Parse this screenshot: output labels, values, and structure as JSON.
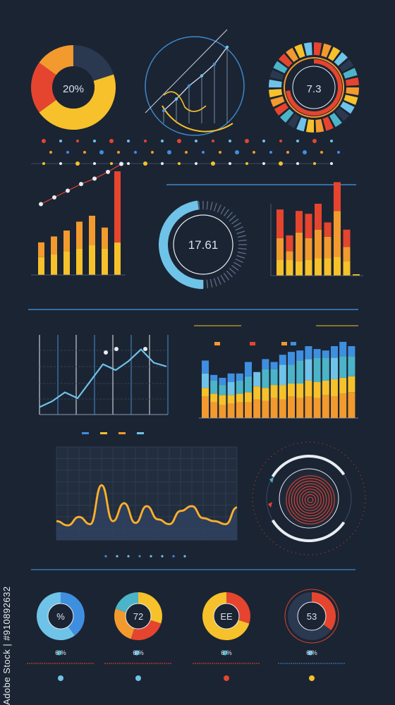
{
  "colors": {
    "background": "#1b2433",
    "orange": "#f29a2e",
    "yellow": "#f6c12a",
    "red": "#e5452e",
    "blue": "#3f8fe0",
    "light_blue": "#6fc3e8",
    "teal": "#4bb4c8",
    "navy": "#2a3850",
    "line": "#3c4a60",
    "accent_line": "#3d87c9"
  },
  "watermark": "Adobe Stock | #910892632",
  "chart_data": [
    {
      "type": "pie",
      "id": "donut-top-left",
      "center_label": "20%",
      "slices": [
        {
          "value": 20,
          "color": "#2a3850"
        },
        {
          "value": 45,
          "color": "#f6c12a"
        },
        {
          "value": 20,
          "color": "#e5452e"
        },
        {
          "value": 15,
          "color": "#f29a2e"
        }
      ]
    },
    {
      "type": "line",
      "id": "radial-line-top-center",
      "x": [
        0,
        1,
        2,
        3,
        4,
        5
      ],
      "values": [
        10,
        25,
        42,
        55,
        70,
        92
      ],
      "ylim": [
        0,
        100
      ]
    },
    {
      "type": "pie",
      "id": "ring-gauge-top-right",
      "center_label": "7.3",
      "segments": 28,
      "value": 73
    },
    {
      "type": "scatter",
      "id": "dot-strip",
      "rows": 3,
      "points_per_row": 18
    },
    {
      "type": "bar",
      "id": "bars-left-with-trend",
      "categories": [
        "",
        "",
        "",
        "",
        "",
        "",
        ""
      ],
      "series": [
        {
          "values": [
            12,
            14,
            16,
            18,
            20,
            18,
            22
          ]
        },
        {
          "values": [
            10,
            12,
            14,
            18,
            20,
            14,
            48
          ]
        }
      ],
      "trend": [
        30,
        40,
        50,
        60,
        68,
        78,
        90
      ],
      "ylim": [
        0,
        100
      ]
    },
    {
      "type": "pie",
      "id": "gauge-center",
      "center_label": "17.61",
      "value": 48
    },
    {
      "type": "bar",
      "id": "bars-right",
      "categories": [
        "",
        "",
        "",
        "",
        "",
        "",
        "",
        "",
        ""
      ],
      "series": [
        {
          "values": [
            22,
            22,
            20,
            22,
            24,
            24,
            26,
            20,
            2
          ]
        },
        {
          "values": [
            30,
            12,
            40,
            30,
            40,
            30,
            64,
            20,
            0
          ]
        },
        {
          "values": [
            40,
            22,
            30,
            34,
            36,
            20,
            40,
            24,
            0
          ]
        }
      ],
      "ylim": [
        0,
        100
      ]
    },
    {
      "type": "line",
      "id": "wave-line-mid-left",
      "x": [
        0,
        1,
        2,
        3,
        4,
        5,
        6,
        7,
        8,
        9,
        10
      ],
      "values": [
        10,
        18,
        30,
        22,
        45,
        68,
        60,
        72,
        88,
        70,
        65
      ],
      "ylim": [
        0,
        100
      ]
    },
    {
      "type": "bar",
      "id": "stacked-bars-mid-right",
      "categories": [
        "",
        "",
        "",
        "",
        "",
        "",
        "",
        "",
        "",
        "",
        "",
        "",
        "",
        "",
        "",
        "",
        "",
        ""
      ],
      "series": [
        {
          "values": [
            30,
            22,
            18,
            20,
            22,
            22,
            26,
            24,
            28,
            26,
            30,
            28,
            30,
            28,
            32,
            30,
            34,
            36
          ]
        },
        {
          "values": [
            12,
            12,
            14,
            12,
            12,
            14,
            18,
            18,
            18,
            20,
            18,
            20,
            22,
            22,
            20,
            24,
            22,
            22
          ]
        },
        {
          "values": [
            20,
            18,
            14,
            18,
            18,
            22,
            20,
            26,
            22,
            28,
            26,
            32,
            30,
            34,
            32,
            30,
            30,
            28
          ]
        },
        {
          "values": [
            18,
            8,
            10,
            12,
            10,
            20,
            0,
            14,
            10,
            14,
            18,
            14,
            18,
            12,
            10,
            16,
            20,
            14
          ]
        }
      ],
      "ylim": [
        0,
        110
      ]
    },
    {
      "type": "line",
      "id": "wave-area-bottom",
      "x": [
        0,
        1,
        2,
        3,
        4,
        5,
        6,
        7,
        8,
        9,
        10,
        11,
        12,
        13,
        14,
        15,
        16
      ],
      "values": [
        15,
        8,
        22,
        10,
        75,
        15,
        45,
        12,
        40,
        18,
        10,
        32,
        40,
        20,
        15,
        10,
        38
      ],
      "ylim": [
        0,
        100
      ]
    },
    {
      "type": "pie",
      "id": "radial-target",
      "rings": 9
    },
    {
      "type": "pie",
      "id": "bottom-donut-1",
      "center_label": "%",
      "legend_label": "6 %",
      "slices": [
        {
          "value": 40,
          "color": "#3f8fe0"
        },
        {
          "value": 60,
          "color": "#6fc3e8"
        }
      ]
    },
    {
      "type": "pie",
      "id": "bottom-donut-2",
      "center_label": "72",
      "legend_label": "6 %",
      "slices": [
        {
          "value": 30,
          "color": "#f6c12a"
        },
        {
          "value": 25,
          "color": "#e5452e"
        },
        {
          "value": 25,
          "color": "#f29a2e"
        },
        {
          "value": 20,
          "color": "#4bb4c8"
        }
      ]
    },
    {
      "type": "pie",
      "id": "bottom-donut-3",
      "center_label": "EE",
      "legend_label": "6 %",
      "slices": [
        {
          "value": 30,
          "color": "#e5452e"
        },
        {
          "value": 70,
          "color": "#f6c12a"
        }
      ]
    },
    {
      "type": "pie",
      "id": "bottom-donut-4",
      "center_label": "53",
      "legend_label": "6 %",
      "slices": [
        {
          "value": 35,
          "color": "#e5452e"
        },
        {
          "value": 65,
          "color": "#2a3850"
        }
      ]
    }
  ]
}
